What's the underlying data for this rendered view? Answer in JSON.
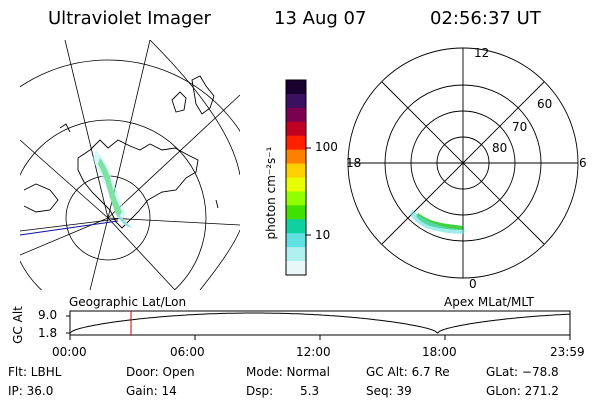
{
  "header": {
    "instrument": "Ultraviolet Imager",
    "date": "13 Aug 07",
    "time": "02:56:37 UT"
  },
  "colorbar": {
    "unit_label": "photon cm⁻²s⁻¹",
    "tick_100": "100",
    "tick_10": "10",
    "colors": [
      "#1a0030",
      "#3a1060",
      "#7a0050",
      "#c00020",
      "#ff2000",
      "#ff8000",
      "#ffd000",
      "#e8ff00",
      "#90ff00",
      "#40e000",
      "#10d0a0",
      "#60e0e0",
      "#b0f0f0",
      "#e8f8f8"
    ]
  },
  "geo_panel": {
    "label": "Geographic Lat/Lon"
  },
  "polar_panel": {
    "label": "Apex MLat/MLT",
    "mlt_12": "12",
    "mlt_18": "18",
    "mlt_6": "6",
    "mlt_0": "0",
    "lat_60": "60",
    "lat_70": "70",
    "lat_80": "80"
  },
  "orbit": {
    "ylabel": "GC Alt",
    "y_top": "9.0",
    "y_bottom": "1.8",
    "x_ticks": [
      "00:00",
      "06:00",
      "12:00",
      "18:00",
      "23:59"
    ],
    "current_time_fraction": 0.122
  },
  "footer": {
    "flt": "Flt: LBHL",
    "ip": "IP: 36.0",
    "door": "Door: Open",
    "gain": "Gain: 14",
    "mode": "Mode: Normal",
    "dsp_label": "Dsp:",
    "dsp_value": "5.3",
    "gc_alt": "GC Alt: 6.7 Re",
    "seq": "Seq: 39",
    "glat": "GLat: −78.8",
    "glon": "GLon: 271.2"
  }
}
